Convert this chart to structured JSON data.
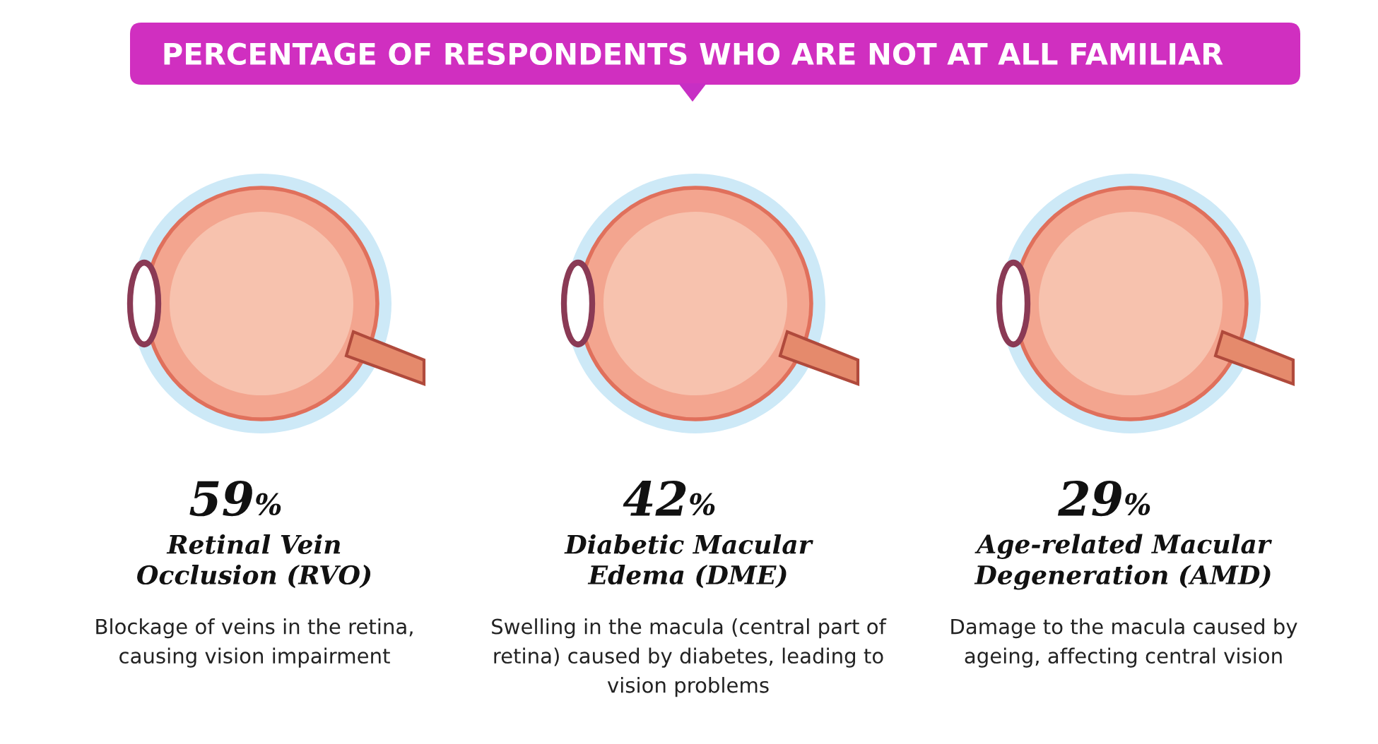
{
  "chart_data": {
    "type": "other",
    "title": "PERCENTAGE OF RESPONDENTS WHO ARE NOT AT ALL FAMILIAR",
    "categories": [
      "Retinal Vein\nOcclusion (RVO)",
      "Diabetic Macular\nEdema (DME)",
      "Age-related Macular\nDegeneration (AMD)"
    ],
    "values": [
      59,
      42,
      29
    ],
    "value_labels": [
      "59%",
      "42%",
      "29%"
    ],
    "annotations": [
      "Blockage of veins in the retina,\ncausing vision impairment",
      "Swelling in the macula (central part of\nretina) caused by diabetes, leading to\nvision problems",
      "Damage to the macula caused by\nageing, affecting central vision"
    ]
  }
}
